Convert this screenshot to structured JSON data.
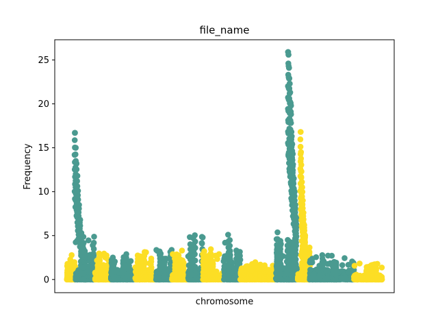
{
  "chart_data": {
    "type": "scatter",
    "title": "file_name",
    "xlabel": "chromosome",
    "ylabel": "Frequency",
    "ylim": [
      -1.5,
      27.3
    ],
    "yticks": [
      0,
      5,
      10,
      15,
      20,
      25
    ],
    "xlim": [
      0,
      1000
    ],
    "colors": {
      "teal": "#4a9a90",
      "yellow": "#fcde25"
    },
    "segments": [
      {
        "x": [
          0,
          22
        ],
        "color": "yellow",
        "base": 0.5,
        "peak": 2.8,
        "spikes": []
      },
      {
        "x": [
          22,
          70
        ],
        "color": "teal",
        "base": 0.9,
        "peak": 5.0,
        "spikes": [
          [
            20,
            16.7
          ],
          [
            22,
            15.0
          ],
          [
            24,
            13.2
          ],
          [
            26,
            11.8
          ],
          [
            28,
            10.1
          ],
          [
            30,
            8.5
          ],
          [
            33,
            6.8
          ],
          [
            36,
            5.3
          ],
          [
            40,
            4.0
          ]
        ]
      },
      {
        "x": [
          70,
          110
        ],
        "color": "yellow",
        "base": 0.6,
        "peak": 3.0,
        "spikes": []
      },
      {
        "x": [
          110,
          170
        ],
        "color": "teal",
        "base": 0.8,
        "peak": 2.9,
        "spikes": []
      },
      {
        "x": [
          170,
          222
        ],
        "color": "yellow",
        "base": 0.7,
        "peak": 3.4,
        "spikes": []
      },
      {
        "x": [
          222,
          262
        ],
        "color": "teal",
        "base": 0.9,
        "peak": 3.6,
        "spikes": []
      },
      {
        "x": [
          262,
          302
        ],
        "color": "yellow",
        "base": 0.6,
        "peak": 3.3,
        "spikes": []
      },
      {
        "x": [
          302,
          340
        ],
        "color": "teal",
        "base": 1.0,
        "peak": 5.2,
        "spikes": []
      },
      {
        "x": [
          340,
          390
        ],
        "color": "yellow",
        "base": 0.6,
        "peak": 3.6,
        "spikes": []
      },
      {
        "x": [
          390,
          432
        ],
        "color": "teal",
        "base": 1.2,
        "peak": 5.1,
        "spikes": []
      },
      {
        "x": [
          432,
          470
        ],
        "color": "yellow",
        "base": 0.7,
        "peak": 2.0,
        "spikes": []
      },
      {
        "x": [
          470,
          520
        ],
        "color": "yellow",
        "base": 0.6,
        "peak": 1.8,
        "spikes": []
      },
      {
        "x": [
          520,
          545
        ],
        "color": "teal",
        "base": 0.8,
        "peak": 5.5,
        "spikes": []
      },
      {
        "x": [
          545,
          575
        ],
        "color": "teal",
        "base": 1.5,
        "peak": 5.0,
        "spikes": [
          [
            551,
            25.9
          ],
          [
            552,
            25.6
          ],
          [
            553,
            24.1
          ],
          [
            554,
            22.9
          ],
          [
            555,
            22.3
          ],
          [
            556,
            21.3
          ],
          [
            557,
            20.1
          ],
          [
            558,
            19.8
          ],
          [
            559,
            16.8
          ],
          [
            560,
            16.3
          ],
          [
            561,
            15.4
          ],
          [
            562,
            14.3
          ],
          [
            563,
            13.1
          ],
          [
            565,
            11.5
          ],
          [
            567,
            10.0
          ],
          [
            569,
            8.5
          ],
          [
            571,
            7.0
          ]
        ]
      },
      {
        "x": [
          575,
          605
        ],
        "color": "yellow",
        "base": 0.6,
        "peak": 4.5,
        "spikes": [
          [
            582,
            16.8
          ],
          [
            583,
            14.5
          ],
          [
            584,
            12.3
          ],
          [
            585,
            11.1
          ],
          [
            586,
            10.5
          ],
          [
            587,
            9.0
          ],
          [
            589,
            7.6
          ],
          [
            591,
            6.2
          ],
          [
            593,
            5.0
          ]
        ]
      },
      {
        "x": [
          605,
          715
        ],
        "color": "teal",
        "base": 0.8,
        "peak": 2.8,
        "spikes": []
      },
      {
        "x": [
          715,
          785
        ],
        "color": "yellow",
        "base": 0.4,
        "peak": 1.9,
        "spikes": []
      }
    ]
  }
}
